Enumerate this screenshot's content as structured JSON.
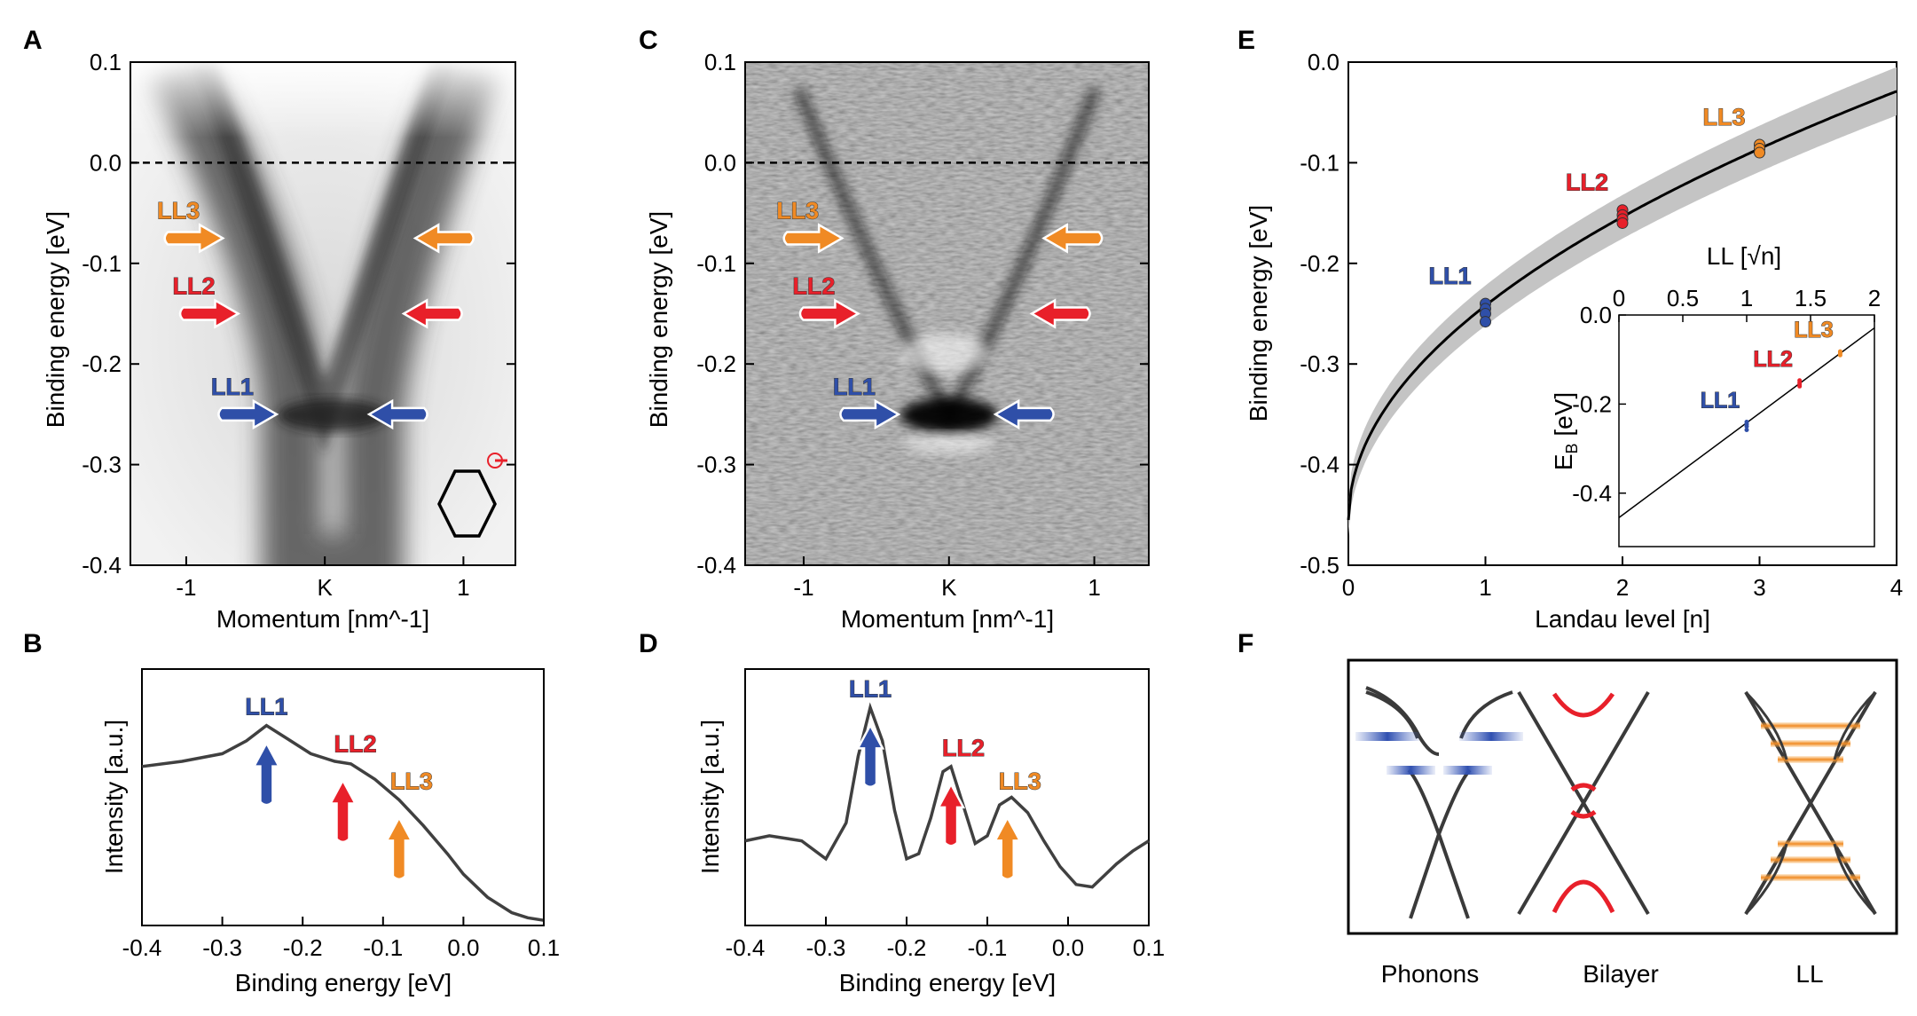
{
  "colors": {
    "ll1": "#2f4fa8",
    "ll2": "#e8202a",
    "ll3": "#f08a24",
    "line": "#404040"
  },
  "panels": {
    "A": "A",
    "B": "B",
    "C": "C",
    "D": "D",
    "E": "E",
    "F": "F"
  },
  "ll_labels": {
    "ll1": "LL1",
    "ll2": "LL2",
    "ll3": "LL3"
  },
  "chart_data": [
    {
      "panel": "A",
      "type": "heatmap",
      "xlabel": "Momentum [nm^-1]",
      "ylabel": "Binding energy [eV]",
      "xticks": [
        "-1",
        "K",
        "1"
      ],
      "yticks": [
        "0.1",
        "0.0",
        "-0.1",
        "-0.2",
        "-0.3",
        "-0.4"
      ],
      "ylim": [
        -0.4,
        0.1
      ],
      "fermi_level_dashed": 0.0,
      "arrows": [
        {
          "label": "LL3",
          "energy": -0.075
        },
        {
          "label": "LL2",
          "energy": -0.15
        },
        {
          "label": "LL1",
          "energy": -0.25
        }
      ]
    },
    {
      "panel": "B",
      "type": "line",
      "xlabel": "Binding energy [eV]",
      "ylabel": "Intensity [a.u.]",
      "xticks": [
        "-0.4",
        "-0.3",
        "-0.2",
        "-0.1",
        "0.0",
        "0.1"
      ],
      "xlim": [
        -0.4,
        0.1
      ],
      "x": [
        -0.4,
        -0.35,
        -0.3,
        -0.27,
        -0.245,
        -0.22,
        -0.19,
        -0.16,
        -0.14,
        -0.11,
        -0.08,
        -0.05,
        -0.02,
        0.0,
        0.03,
        0.06,
        0.08,
        0.1
      ],
      "y": [
        0.62,
        0.64,
        0.67,
        0.72,
        0.78,
        0.73,
        0.67,
        0.64,
        0.63,
        0.57,
        0.49,
        0.39,
        0.28,
        0.2,
        0.11,
        0.05,
        0.03,
        0.02
      ],
      "arrows": [
        {
          "label": "LL1",
          "x": -0.245
        },
        {
          "label": "LL2",
          "x": -0.15
        },
        {
          "label": "LL3",
          "x": -0.08
        }
      ]
    },
    {
      "panel": "C",
      "type": "heatmap",
      "xlabel": "Momentum [nm^-1]",
      "ylabel": "Binding energy [eV]",
      "xticks": [
        "-1",
        "K",
        "1"
      ],
      "yticks": [
        "0.1",
        "0.0",
        "-0.1",
        "-0.2",
        "-0.3",
        "-0.4"
      ],
      "ylim": [
        -0.4,
        0.1
      ],
      "fermi_level_dashed": 0.0,
      "arrows": [
        {
          "label": "LL3",
          "energy": -0.075
        },
        {
          "label": "LL2",
          "energy": -0.15
        },
        {
          "label": "LL1",
          "energy": -0.25
        }
      ]
    },
    {
      "panel": "D",
      "type": "line",
      "xlabel": "Binding energy [eV]",
      "ylabel": "Intensity [a.u.]",
      "xticks": [
        "-0.4",
        "-0.3",
        "-0.2",
        "-0.1",
        "0.0",
        "0.1"
      ],
      "xlim": [
        -0.4,
        0.1
      ],
      "x": [
        -0.4,
        -0.37,
        -0.33,
        -0.3,
        -0.275,
        -0.26,
        -0.245,
        -0.23,
        -0.215,
        -0.2,
        -0.185,
        -0.17,
        -0.155,
        -0.145,
        -0.13,
        -0.115,
        -0.1,
        -0.085,
        -0.07,
        -0.05,
        -0.03,
        -0.01,
        0.01,
        0.03,
        0.06,
        0.08,
        0.1
      ],
      "y": [
        0.33,
        0.35,
        0.33,
        0.26,
        0.4,
        0.66,
        0.85,
        0.72,
        0.45,
        0.26,
        0.28,
        0.42,
        0.6,
        0.62,
        0.47,
        0.32,
        0.35,
        0.47,
        0.5,
        0.44,
        0.33,
        0.23,
        0.16,
        0.15,
        0.24,
        0.29,
        0.33
      ],
      "arrows": [
        {
          "label": "LL1",
          "x": -0.245
        },
        {
          "label": "LL2",
          "x": -0.145
        },
        {
          "label": "LL3",
          "x": -0.075
        }
      ]
    },
    {
      "panel": "E",
      "type": "scatter",
      "xlabel": "Landau level [n]",
      "ylabel": "Binding energy [eV]",
      "xticks": [
        "0",
        "1",
        "2",
        "3",
        "4"
      ],
      "yticks": [
        "0.0",
        "-0.1",
        "-0.2",
        "-0.3",
        "-0.4",
        "-0.5"
      ],
      "xlim": [
        0,
        4
      ],
      "ylim": [
        -0.5,
        0
      ],
      "fit": {
        "E0": -0.455,
        "a": 0.213,
        "band": 0.02
      },
      "points": [
        {
          "label": "LL1",
          "n": 1,
          "E": [
            -0.24,
            -0.245,
            -0.25,
            -0.258
          ]
        },
        {
          "label": "LL2",
          "n": 2,
          "E": [
            -0.147,
            -0.152,
            -0.156,
            -0.16
          ]
        },
        {
          "label": "LL3",
          "n": 3,
          "E": [
            -0.082,
            -0.086,
            -0.09
          ]
        }
      ],
      "inset": {
        "xlabel": "LL [√n]",
        "ylabel": "E",
        "ylabel_sub": "B",
        "ylabel_unit": " [eV]",
        "xticks": [
          "0",
          "0.5",
          "1",
          "1.5",
          "2"
        ],
        "yticks": [
          "0.0",
          "-0.2",
          "-0.4"
        ],
        "xlim": [
          0,
          2
        ],
        "ylim": [
          -0.52,
          0
        ]
      }
    }
  ],
  "panel_f": {
    "captions": [
      "Phonons",
      "Bilayer",
      "LL"
    ]
  }
}
